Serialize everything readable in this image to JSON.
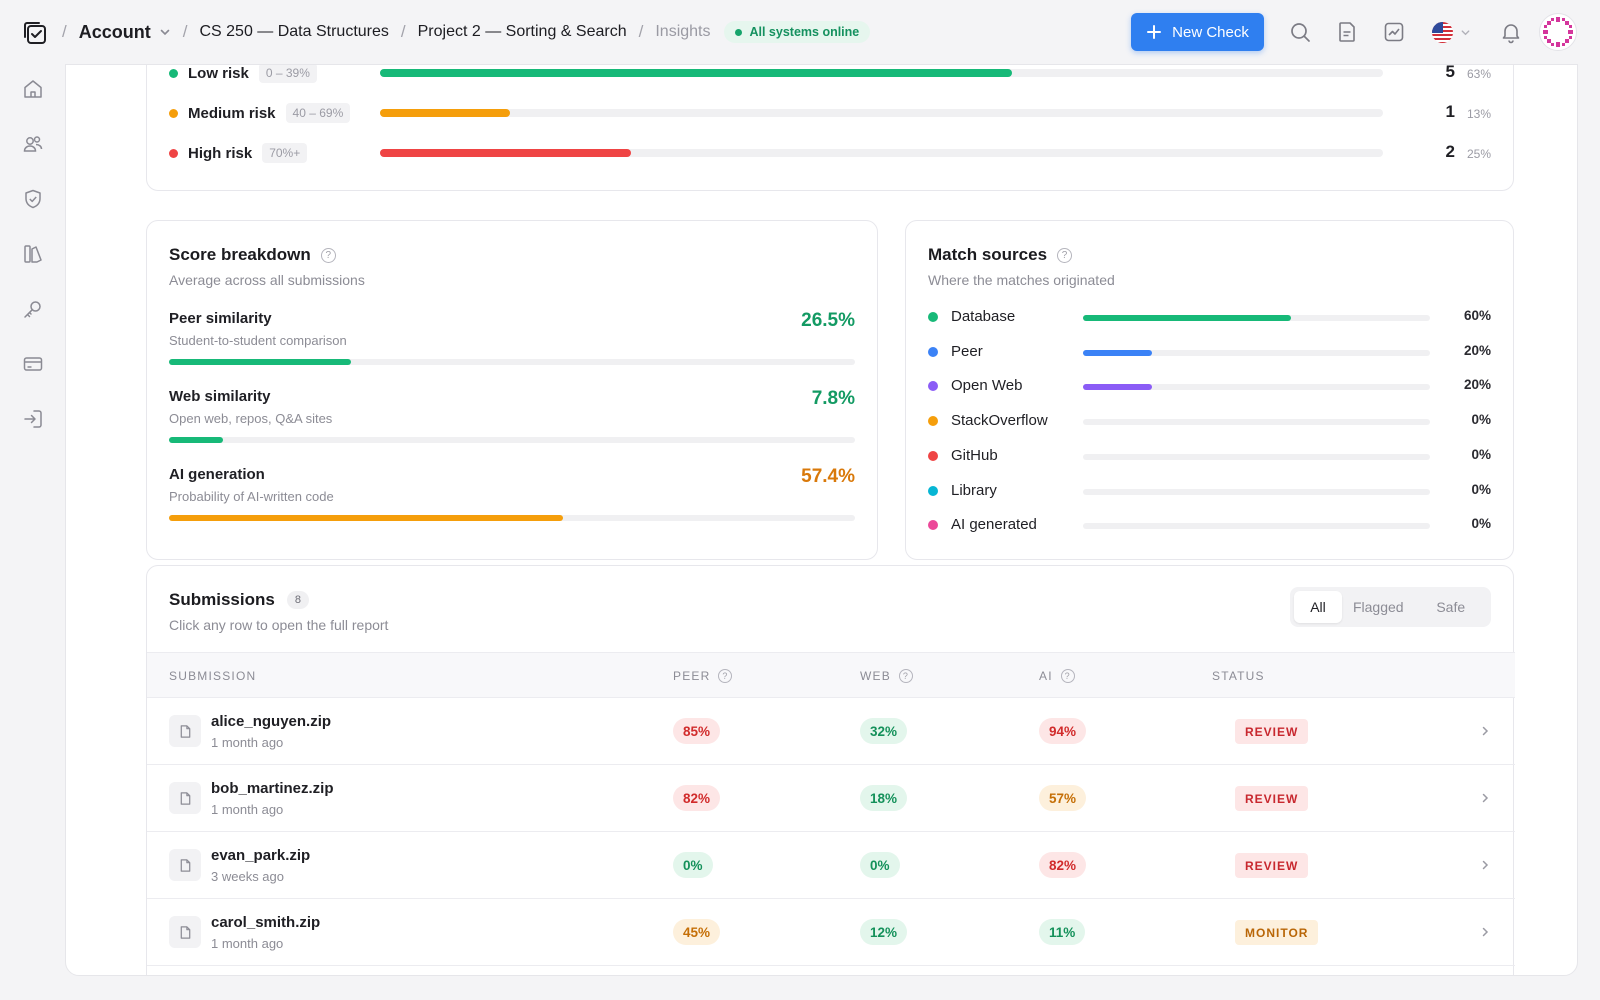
{
  "header": {
    "breadcrumbs": [
      "Account",
      "CS 250 — Data Structures",
      "Project 2 — Sorting & Search",
      "Insights"
    ],
    "system_status": "All systems online",
    "new_check_label": "New Check"
  },
  "risk": [
    {
      "label": "Low risk",
      "range": "0 – 39%",
      "count": "5",
      "pct": "63%",
      "fill": 0.63,
      "color": "#17b978"
    },
    {
      "label": "Medium risk",
      "range": "40 – 69%",
      "count": "1",
      "pct": "13%",
      "fill": 0.13,
      "color": "#f59e0b"
    },
    {
      "label": "High risk",
      "range": "70%+",
      "count": "2",
      "pct": "25%",
      "fill": 0.25,
      "color": "#ef4444"
    }
  ],
  "score_breakdown": {
    "title": "Score breakdown",
    "subtitle": "Average across all submissions",
    "items": [
      {
        "name": "Peer similarity",
        "desc": "Student-to-student comparison",
        "value": "26.5%",
        "fill": 0.265,
        "color": "#17b978",
        "text_color": "#139a63"
      },
      {
        "name": "Web similarity",
        "desc": "Open web, repos, Q&A sites",
        "value": "7.8%",
        "fill": 0.078,
        "color": "#17b978",
        "text_color": "#139a63"
      },
      {
        "name": "AI generation",
        "desc": "Probability of AI-written code",
        "value": "57.4%",
        "fill": 0.574,
        "color": "#f59e0b",
        "text_color": "#d9790a"
      }
    ]
  },
  "match_sources": {
    "title": "Match sources",
    "subtitle": "Where the matches originated",
    "items": [
      {
        "name": "Database",
        "pct": "60%",
        "fill": 0.6,
        "color": "#17b978"
      },
      {
        "name": "Peer",
        "pct": "20%",
        "fill": 0.2,
        "color": "#3b82f6"
      },
      {
        "name": "Open Web",
        "pct": "20%",
        "fill": 0.2,
        "color": "#8b5cf6"
      },
      {
        "name": "StackOverflow",
        "pct": "0%",
        "fill": 0,
        "color": "#f59e0b"
      },
      {
        "name": "GitHub",
        "pct": "0%",
        "fill": 0,
        "color": "#ef4444"
      },
      {
        "name": "Library",
        "pct": "0%",
        "fill": 0,
        "color": "#06b6d4"
      },
      {
        "name": "AI generated",
        "pct": "0%",
        "fill": 0,
        "color": "#ec4899"
      }
    ]
  },
  "submissions": {
    "title": "Submissions",
    "count": "8",
    "subtitle": "Click any row to open the full report",
    "filters": [
      "All",
      "Flagged",
      "Safe"
    ],
    "columns": [
      "SUBMISSION",
      "PEER",
      "WEB",
      "AI",
      "STATUS"
    ],
    "rows": [
      {
        "file": "alice_nguyen.zip",
        "time": "1 month ago",
        "peer": "85%",
        "peer_tone": "red",
        "web": "32%",
        "web_tone": "green",
        "ai": "94%",
        "ai_tone": "red",
        "status": "REVIEW",
        "status_tone": "review"
      },
      {
        "file": "bob_martinez.zip",
        "time": "1 month ago",
        "peer": "82%",
        "peer_tone": "red",
        "web": "18%",
        "web_tone": "green",
        "ai": "57%",
        "ai_tone": "amber",
        "status": "REVIEW",
        "status_tone": "review"
      },
      {
        "file": "evan_park.zip",
        "time": "3 weeks ago",
        "peer": "0%",
        "peer_tone": "green",
        "web": "0%",
        "web_tone": "green",
        "ai": "82%",
        "ai_tone": "red",
        "status": "REVIEW",
        "status_tone": "review"
      },
      {
        "file": "carol_smith.zip",
        "time": "1 month ago",
        "peer": "45%",
        "peer_tone": "amber",
        "web": "12%",
        "web_tone": "green",
        "ai": "11%",
        "ai_tone": "green",
        "status": "MONITOR",
        "status_tone": "monitor"
      }
    ]
  },
  "icons": {
    "sidebar": [
      "home-icon",
      "users-icon",
      "shield-check-icon",
      "library-icon",
      "key-icon",
      "credit-card-icon",
      "sign-in-icon"
    ],
    "topbar": [
      "search-icon",
      "document-icon",
      "chart-icon",
      "us-flag-icon",
      "bell-icon"
    ]
  }
}
